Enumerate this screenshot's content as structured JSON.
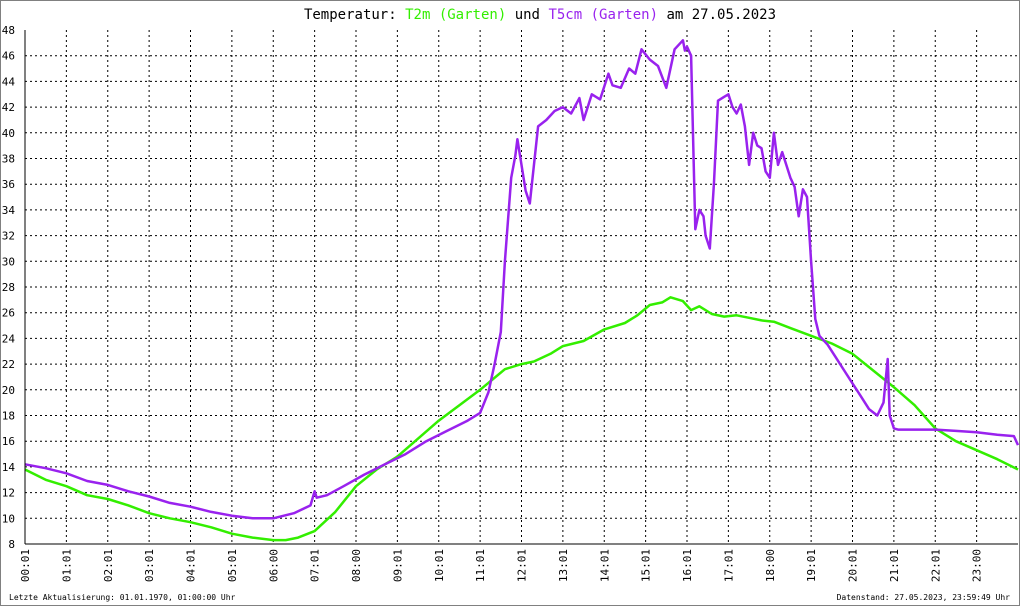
{
  "title": {
    "prefix": "Temperatur:",
    "series1": "T2m (Garten)",
    "joiner": "und",
    "series2": "T5cm (Garten)",
    "suffix": "am 27.05.2023"
  },
  "footer": {
    "left": "Letzte Aktualisierung: 01.01.1970, 01:00:00 Uhr",
    "right": "Datenstand: 27.05.2023, 23:59:49 Uhr"
  },
  "colors": {
    "t2m": "#33ee00",
    "t5cm": "#9922ee",
    "grid": "#000000",
    "axis": "#000000"
  },
  "chart_data": {
    "type": "line",
    "title": "Temperatur: T2m (Garten) und T5cm (Garten) am 27.05.2023",
    "xlabel": "",
    "ylabel": "",
    "xlim": [
      0,
      24
    ],
    "ylim": [
      8,
      48
    ],
    "grid": true,
    "x_ticks": [
      "00:01",
      "01:01",
      "02:01",
      "03:01",
      "04:01",
      "05:01",
      "06:00",
      "07:01",
      "08:00",
      "09:01",
      "10:01",
      "11:01",
      "12:01",
      "13:01",
      "14:01",
      "15:01",
      "16:01",
      "17:01",
      "18:00",
      "19:01",
      "20:01",
      "21:01",
      "22:01",
      "23:00"
    ],
    "y_ticks": [
      8,
      10,
      12,
      14,
      16,
      18,
      20,
      22,
      24,
      26,
      28,
      30,
      32,
      34,
      36,
      38,
      40,
      42,
      44,
      46,
      48
    ],
    "series": [
      {
        "name": "T2m (Garten)",
        "color": "#33ee00",
        "x": [
          0.0,
          0.5,
          1.0,
          1.5,
          2.0,
          2.5,
          3.0,
          3.5,
          4.0,
          4.5,
          5.0,
          5.5,
          6.0,
          6.3,
          6.6,
          7.0,
          7.5,
          8.0,
          8.5,
          9.0,
          9.5,
          10.0,
          10.5,
          11.0,
          11.3,
          11.6,
          12.0,
          12.3,
          12.7,
          13.0,
          13.5,
          14.0,
          14.5,
          14.8,
          15.1,
          15.4,
          15.6,
          15.9,
          16.1,
          16.3,
          16.6,
          16.9,
          17.2,
          17.5,
          17.8,
          18.1,
          18.5,
          19.0,
          19.5,
          20.0,
          20.5,
          21.0,
          21.5,
          22.0,
          22.5,
          23.0,
          23.5,
          24.0
        ],
        "values": [
          13.8,
          13.0,
          12.5,
          11.8,
          11.5,
          11.0,
          10.4,
          10.0,
          9.7,
          9.3,
          8.8,
          8.5,
          8.3,
          8.3,
          8.5,
          9.0,
          10.5,
          12.5,
          13.8,
          14.8,
          16.2,
          17.6,
          18.8,
          20.0,
          20.8,
          21.6,
          22.0,
          22.2,
          22.8,
          23.4,
          23.8,
          24.7,
          25.2,
          25.8,
          26.6,
          26.8,
          27.2,
          26.9,
          26.2,
          26.5,
          25.9,
          25.7,
          25.8,
          25.6,
          25.4,
          25.3,
          24.8,
          24.2,
          23.6,
          22.8,
          21.5,
          20.2,
          18.8,
          17.0,
          16.0,
          15.3,
          14.6,
          13.8
        ]
      },
      {
        "name": "T5cm (Garten)",
        "color": "#9922ee",
        "x": [
          0.0,
          0.5,
          1.0,
          1.5,
          2.0,
          2.5,
          3.0,
          3.5,
          4.0,
          4.5,
          5.0,
          5.5,
          6.0,
          6.5,
          6.9,
          7.0,
          7.05,
          7.3,
          7.7,
          8.2,
          8.7,
          9.2,
          9.7,
          10.2,
          10.7,
          11.0,
          11.2,
          11.35,
          11.5,
          11.6,
          11.75,
          11.85,
          11.9,
          12.1,
          12.2,
          12.4,
          12.6,
          12.8,
          13.0,
          13.2,
          13.4,
          13.5,
          13.7,
          13.9,
          14.1,
          14.2,
          14.4,
          14.6,
          14.75,
          14.9,
          15.1,
          15.3,
          15.5,
          15.7,
          15.9,
          15.95,
          16.0,
          16.1,
          16.2,
          16.3,
          16.4,
          16.45,
          16.55,
          16.65,
          16.75,
          16.9,
          17.0,
          17.1,
          17.2,
          17.3,
          17.4,
          17.5,
          17.6,
          17.7,
          17.8,
          17.9,
          18.0,
          18.1,
          18.2,
          18.3,
          18.4,
          18.5,
          18.6,
          18.7,
          18.8,
          18.9,
          19.0,
          19.1,
          19.2,
          19.4,
          19.6,
          19.8,
          20.0,
          20.2,
          20.4,
          20.6,
          20.75,
          20.85,
          20.9,
          20.95,
          21.0,
          21.1,
          21.5,
          22.0,
          22.5,
          23.0,
          23.5,
          23.9,
          24.0
        ],
        "values": [
          14.2,
          13.9,
          13.5,
          12.9,
          12.6,
          12.1,
          11.7,
          11.2,
          10.9,
          10.5,
          10.2,
          10.0,
          10.0,
          10.4,
          11.0,
          12.1,
          11.6,
          11.8,
          12.5,
          13.4,
          14.2,
          15.0,
          16.0,
          16.8,
          17.6,
          18.2,
          19.8,
          22.0,
          24.5,
          30.0,
          36.5,
          38.2,
          39.5,
          35.5,
          34.5,
          40.5,
          41.0,
          41.7,
          42.0,
          41.5,
          42.7,
          41.0,
          43.0,
          42.6,
          44.6,
          43.7,
          43.5,
          45.0,
          44.6,
          46.5,
          45.7,
          45.2,
          43.5,
          46.5,
          47.2,
          46.4,
          46.7,
          46.0,
          32.5,
          34.0,
          33.5,
          32.0,
          31.0,
          36.0,
          42.5,
          42.8,
          43.0,
          42.0,
          41.5,
          42.2,
          40.5,
          37.5,
          40.0,
          39.0,
          38.8,
          37.0,
          36.5,
          40.0,
          37.5,
          38.5,
          37.5,
          36.5,
          35.8,
          33.5,
          35.6,
          35.0,
          30.0,
          25.5,
          24.2,
          23.5,
          22.5,
          21.5,
          20.5,
          19.5,
          18.5,
          18.0,
          19.0,
          22.4,
          18.0,
          17.5,
          17.0,
          16.9,
          16.9,
          16.9,
          16.8,
          16.7,
          16.5,
          16.4,
          15.7
        ]
      }
    ]
  }
}
